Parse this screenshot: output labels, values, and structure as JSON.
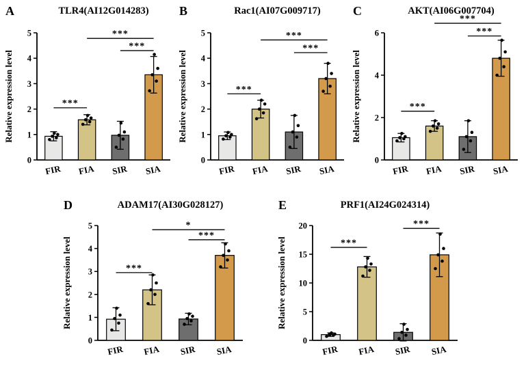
{
  "colors": {
    "FIR": "#e8e8e6",
    "FIA": "#d3c387",
    "SIR": "#6e6e6e",
    "SIA": "#d29a4a",
    "edge": "#000000",
    "point": "#000000"
  },
  "chart_data": [
    {
      "type": "bar",
      "panel": "A",
      "title": "TLR4(AI12G014283)",
      "ylabel": "Relative expression level",
      "ylim": [
        0,
        5
      ],
      "yticks": [
        0,
        1,
        2,
        3,
        4,
        5
      ],
      "categories": [
        "FIR",
        "FIA",
        "SIR",
        "SIA"
      ],
      "values": [
        0.93,
        1.58,
        0.97,
        3.35
      ],
      "errors": [
        0.18,
        0.2,
        0.55,
        0.72
      ],
      "points": [
        [
          0.8,
          0.87,
          0.93,
          1.0,
          1.05
        ],
        [
          1.4,
          1.5,
          1.58,
          1.65,
          1.75
        ],
        [
          0.5,
          0.82,
          0.97,
          1.1,
          1.45
        ],
        [
          2.72,
          3.1,
          3.35,
          3.6,
          4.15
        ]
      ],
      "significance": [
        {
          "from": 0,
          "to": 1,
          "label": "***",
          "y": 2.05
        },
        {
          "from": 1,
          "to": 3,
          "label": "***",
          "y": 4.78
        },
        {
          "from": 2,
          "to": 3,
          "label": "***",
          "y": 4.3
        }
      ]
    },
    {
      "type": "bar",
      "panel": "B",
      "title": "Rac1(AI07G009717)",
      "ylabel": "Relative expression level",
      "ylim": [
        0,
        5
      ],
      "yticks": [
        0,
        1,
        2,
        3,
        4,
        5
      ],
      "categories": [
        "FIR",
        "FIA",
        "SIR",
        "SIA"
      ],
      "values": [
        0.95,
        2.0,
        1.1,
        3.2
      ],
      "errors": [
        0.15,
        0.35,
        0.65,
        0.6
      ],
      "points": [
        [
          0.82,
          0.9,
          0.95,
          1.0,
          1.08
        ],
        [
          1.62,
          1.85,
          2.0,
          2.2,
          2.35
        ],
        [
          0.5,
          0.9,
          1.1,
          1.35,
          1.75
        ],
        [
          2.7,
          2.9,
          3.2,
          3.4,
          3.8
        ]
      ],
      "significance": [
        {
          "from": 0,
          "to": 1,
          "label": "***",
          "y": 2.6
        },
        {
          "from": 1,
          "to": 3,
          "label": "***",
          "y": 4.72
        },
        {
          "from": 2,
          "to": 3,
          "label": "***",
          "y": 4.22
        }
      ]
    },
    {
      "type": "bar",
      "panel": "C",
      "title": "AKT(AI06G007704)",
      "ylabel": "Relative expression level",
      "ylim": [
        0,
        6
      ],
      "yticks": [
        0,
        2,
        4,
        6
      ],
      "categories": [
        "FIR",
        "FIA",
        "SIR",
        "SIA"
      ],
      "values": [
        1.05,
        1.6,
        1.1,
        4.8
      ],
      "errors": [
        0.2,
        0.25,
        0.75,
        0.85
      ],
      "points": [
        [
          0.9,
          1.0,
          1.05,
          1.1,
          1.25
        ],
        [
          1.35,
          1.5,
          1.6,
          1.7,
          1.85
        ],
        [
          0.5,
          0.9,
          1.1,
          1.3,
          1.85
        ],
        [
          4.0,
          4.4,
          4.8,
          5.1,
          5.65
        ]
      ],
      "significance": [
        {
          "from": 0,
          "to": 1,
          "label": "***",
          "y": 2.3
        },
        {
          "from": 1,
          "to": 3,
          "label": "***",
          "y": 6.45
        },
        {
          "from": 2,
          "to": 3,
          "label": "***",
          "y": 5.85
        }
      ]
    },
    {
      "type": "bar",
      "panel": "D",
      "title": "ADAM17(AI30G028127)",
      "ylabel": "Relative expression level",
      "ylim": [
        0,
        5
      ],
      "yticks": [
        0,
        1,
        2,
        3,
        4,
        5
      ],
      "categories": [
        "FIR",
        "FIA",
        "SIR",
        "SIA"
      ],
      "values": [
        0.92,
        2.2,
        0.93,
        3.7
      ],
      "errors": [
        0.5,
        0.65,
        0.25,
        0.55
      ],
      "points": [
        [
          0.45,
          0.75,
          0.95,
          1.1,
          1.4
        ],
        [
          1.6,
          2.0,
          2.2,
          2.5,
          2.85
        ],
        [
          0.7,
          0.85,
          0.95,
          1.05,
          1.15
        ],
        [
          3.2,
          3.5,
          3.7,
          3.9,
          4.2
        ]
      ],
      "significance": [
        {
          "from": 0,
          "to": 1,
          "label": "***",
          "y": 2.95
        },
        {
          "from": 1,
          "to": 3,
          "label": "*",
          "y": 4.82
        },
        {
          "from": 2,
          "to": 3,
          "label": "***",
          "y": 4.38
        }
      ]
    },
    {
      "type": "bar",
      "panel": "E",
      "title": "PRF1(AI24G024314)",
      "ylabel": "Relative expression level",
      "ylim": [
        0,
        20
      ],
      "yticks": [
        0,
        5,
        10,
        15,
        20
      ],
      "categories": [
        "FIR",
        "FIA",
        "SIR",
        "SIA"
      ],
      "values": [
        1.0,
        12.8,
        1.4,
        14.9
      ],
      "errors": [
        0.3,
        1.8,
        1.5,
        3.8
      ],
      "points": [
        [
          0.7,
          0.9,
          1.0,
          1.1,
          1.3
        ],
        [
          11.2,
          12.2,
          12.8,
          13.3,
          14.3
        ],
        [
          0.3,
          0.9,
          1.4,
          1.9,
          2.8
        ],
        [
          12.5,
          13.8,
          14.9,
          16.0,
          18.5
        ]
      ],
      "significance": [
        {
          "from": 0,
          "to": 1,
          "label": "***",
          "y": 16.2
        },
        {
          "from": 2,
          "to": 3,
          "label": "***",
          "y": 19.5
        }
      ]
    }
  ]
}
